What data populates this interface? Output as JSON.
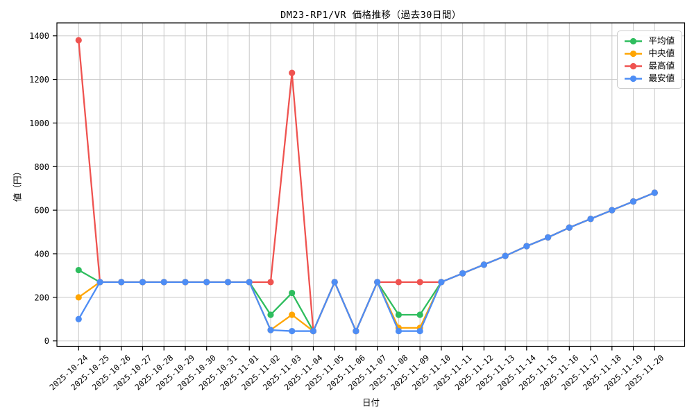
{
  "title": "DM23-RP1/VR 価格推移（過去30日間）",
  "chart_data": {
    "type": "line",
    "title": "DM23-RP1/VR 価格推移（過去30日間）",
    "xlabel": "日付",
    "ylabel": "値（円）",
    "ylim": [
      -25,
      1460
    ],
    "yticks": [
      0,
      200,
      400,
      600,
      800,
      1000,
      1200,
      1400
    ],
    "grid": true,
    "legend_position": "upper right",
    "categories": [
      "2025-10-24",
      "2025-10-25",
      "2025-10-26",
      "2025-10-27",
      "2025-10-28",
      "2025-10-29",
      "2025-10-30",
      "2025-10-31",
      "2025-11-01",
      "2025-11-02",
      "2025-11-03",
      "2025-11-04",
      "2025-11-05",
      "2025-11-06",
      "2025-11-07",
      "2025-11-08",
      "2025-11-09",
      "2025-11-10",
      "2025-11-11",
      "2025-11-12",
      "2025-11-13",
      "2025-11-14",
      "2025-11-15",
      "2025-11-16",
      "2025-11-17",
      "2025-11-18",
      "2025-11-19",
      "2025-11-20"
    ],
    "series": [
      {
        "name": "平均値",
        "color": "#2ebd5e",
        "values": [
          325,
          270,
          270,
          270,
          270,
          270,
          270,
          270,
          270,
          120,
          220,
          45,
          270,
          45,
          270,
          120,
          120,
          270,
          310,
          350,
          390,
          435,
          475,
          520,
          560,
          600,
          640,
          680
        ]
      },
      {
        "name": "中央値",
        "color": "#ffa502",
        "values": [
          200,
          270,
          270,
          270,
          270,
          270,
          270,
          270,
          270,
          50,
          120,
          45,
          270,
          45,
          270,
          60,
          60,
          270,
          310,
          350,
          390,
          435,
          475,
          520,
          560,
          600,
          640,
          680
        ]
      },
      {
        "name": "最高値",
        "color": "#ef5350",
        "values": [
          1380,
          270,
          270,
          270,
          270,
          270,
          270,
          270,
          270,
          270,
          1230,
          45,
          270,
          45,
          270,
          270,
          270,
          270,
          310,
          350,
          390,
          435,
          475,
          520,
          560,
          600,
          640,
          680
        ]
      },
      {
        "name": "最安値",
        "color": "#4d8df5",
        "values": [
          100,
          270,
          270,
          270,
          270,
          270,
          270,
          270,
          270,
          50,
          45,
          45,
          270,
          45,
          270,
          45,
          45,
          270,
          310,
          350,
          390,
          435,
          475,
          520,
          560,
          600,
          640,
          680
        ]
      }
    ],
    "axis_color": "#000000",
    "grid_color": "#c8c8c8",
    "background_color": "#ffffff"
  }
}
